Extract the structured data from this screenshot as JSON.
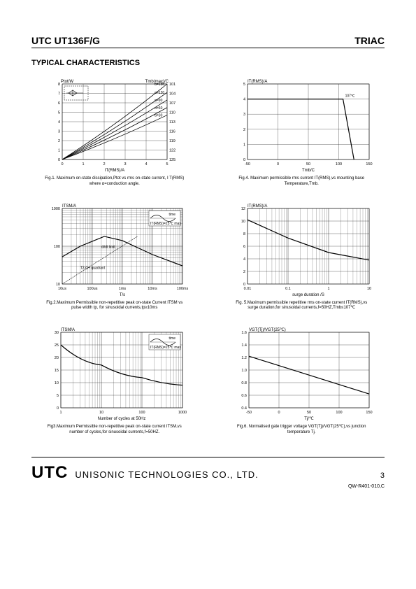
{
  "header": {
    "left": "UTC UT136F/G",
    "right": "TRIAC"
  },
  "section_title": "TYPICAL CHARACTERISTICS",
  "fig1": {
    "type": "line",
    "y_left_label": "Ptot/W",
    "y_right_label": "Tmb(max)/C",
    "x_label": "IT(RMS)/A",
    "x_ticks": [
      0,
      1,
      2,
      3,
      4,
      5
    ],
    "y_left_ticks": [
      0,
      1,
      2,
      3,
      4,
      5,
      6,
      7,
      8
    ],
    "y_right_ticks": [
      "125",
      "122",
      "119",
      "116",
      "113",
      "110",
      "107",
      "104",
      "101"
    ],
    "xlim": [
      0,
      5
    ],
    "ylim": [
      0,
      8
    ],
    "legend_labels": [
      "α=180",
      "α=120",
      "α=90",
      "α=60",
      "α=30"
    ],
    "series": [
      {
        "points": [
          [
            0,
            0
          ],
          [
            5,
            8.0
          ]
        ]
      },
      {
        "points": [
          [
            0,
            0
          ],
          [
            5,
            7.1
          ]
        ]
      },
      {
        "points": [
          [
            0,
            0
          ],
          [
            5,
            6.3
          ]
        ]
      },
      {
        "points": [
          [
            0,
            0
          ],
          [
            5,
            5.5
          ]
        ]
      },
      {
        "points": [
          [
            0,
            0
          ],
          [
            5,
            4.7
          ]
        ]
      }
    ],
    "caption": "Fig.1. Maximum on-state dissipation,Ptot vs rms on-state current, I T(RMS) where α=conduction angle.",
    "grid_color": "#000",
    "line_color": "#000",
    "bg": "#fff"
  },
  "fig2": {
    "type": "line-log",
    "y_label": "ITSM/A",
    "x_label": "T/s",
    "x_ticks": [
      "10us",
      "100us",
      "1ms",
      "10ms",
      "100ms"
    ],
    "y_ticks": [
      "10",
      "100",
      "1000"
    ],
    "annotations": [
      "di/dt limit",
      "T2-G+ quadrant"
    ],
    "inset_label": "IT(RMS)=25℃ max",
    "curve": [
      [
        0,
        1.72
      ],
      [
        0.6,
        2.0
      ],
      [
        1.4,
        2.26
      ],
      [
        2.0,
        2.15
      ],
      [
        3.0,
        1.78
      ],
      [
        4.0,
        1.48
      ]
    ],
    "diag": [
      [
        0,
        1.0
      ],
      [
        2.5,
        2.26
      ]
    ],
    "caption": "Fig.2.Maximum Permissible non-repetitive peak on-state Current ITSM vs pulse width tp, for sinusoidal currents,tp≥10ms",
    "grid_color": "#000",
    "line_color": "#000"
  },
  "fig3": {
    "type": "line-semilogx",
    "y_label": "ITSM/A",
    "x_label": "Number of cycles at 50Hz",
    "x_ticks": [
      "1",
      "10",
      "100",
      "1000"
    ],
    "y_ticks": [
      0,
      5,
      10,
      15,
      20,
      25,
      30
    ],
    "ylim": [
      0,
      30
    ],
    "inset_label": "IT(RMS)=25℃ max",
    "curve": [
      [
        0,
        25
      ],
      [
        1,
        17
      ],
      [
        2,
        12
      ],
      [
        3,
        9
      ]
    ],
    "caption": "Fig3.Maximum Permissible non-repetitive peak on-state current ITSM,vs number of cycles,for sinusoidal currents,f=50HZ.",
    "grid_color": "#000",
    "line_color": "#000"
  },
  "fig4": {
    "type": "line",
    "y_label": "IT(RMS)/A",
    "x_label": "Tmb/C",
    "x_ticks": [
      -50,
      0,
      50,
      100,
      150
    ],
    "y_ticks": [
      0,
      1,
      2,
      3,
      4,
      5
    ],
    "xlim": [
      -50,
      150
    ],
    "ylim": [
      0,
      5
    ],
    "marker_label": "107℃",
    "curve": [
      [
        -50,
        4
      ],
      [
        107,
        4
      ],
      [
        125,
        0
      ]
    ],
    "caption": "Fig.4. Maximum permissible rms current IT(RMS),vs mounting base Temperature,Tmb.",
    "grid_color": "#000",
    "line_color": "#000"
  },
  "fig5": {
    "type": "line-semilogx",
    "y_label": "IT(RMS)/A",
    "x_label": "surge duration /S",
    "x_ticks": [
      "0.01",
      "0.1",
      "1",
      "10"
    ],
    "y_ticks": [
      0,
      2,
      4,
      6,
      8,
      10,
      12
    ],
    "ylim": [
      0,
      12
    ],
    "curve": [
      [
        0,
        10.2
      ],
      [
        1,
        7.3
      ],
      [
        2,
        5.0
      ],
      [
        3,
        3.8
      ]
    ],
    "caption": "Fig. 5.Maximum permissible repetitive rms on-state current IT(RMS),vs surge duration,for sinusoidal currents,f=50HZ,Tmb≤107℃",
    "grid_color": "#000",
    "line_color": "#000"
  },
  "fig6": {
    "type": "line",
    "y_label": "VGT(Tj)/VGT(25℃)",
    "x_label": "Tj/℃",
    "x_ticks": [
      -50,
      0,
      50,
      100,
      150
    ],
    "y_ticks": [
      "0.4",
      "0.6",
      "0.8",
      "1.0",
      "1.2",
      "1.4",
      "1.6"
    ],
    "xlim": [
      -50,
      150
    ],
    "ylim": [
      0.4,
      1.6
    ],
    "curve": [
      [
        -50,
        1.22
      ],
      [
        150,
        0.62
      ]
    ],
    "caption": "Fig.6. Normalised gate trigger voltage VGT(Tj)/VGT(25℃),vs junction temperature Tj.",
    "grid_color": "#000",
    "line_color": "#000"
  },
  "footer": {
    "brand": "UTC",
    "company": "UNISONIC TECHNOLOGIES CO., LTD.",
    "page": "3",
    "doc": "QW-R401-010,C"
  }
}
